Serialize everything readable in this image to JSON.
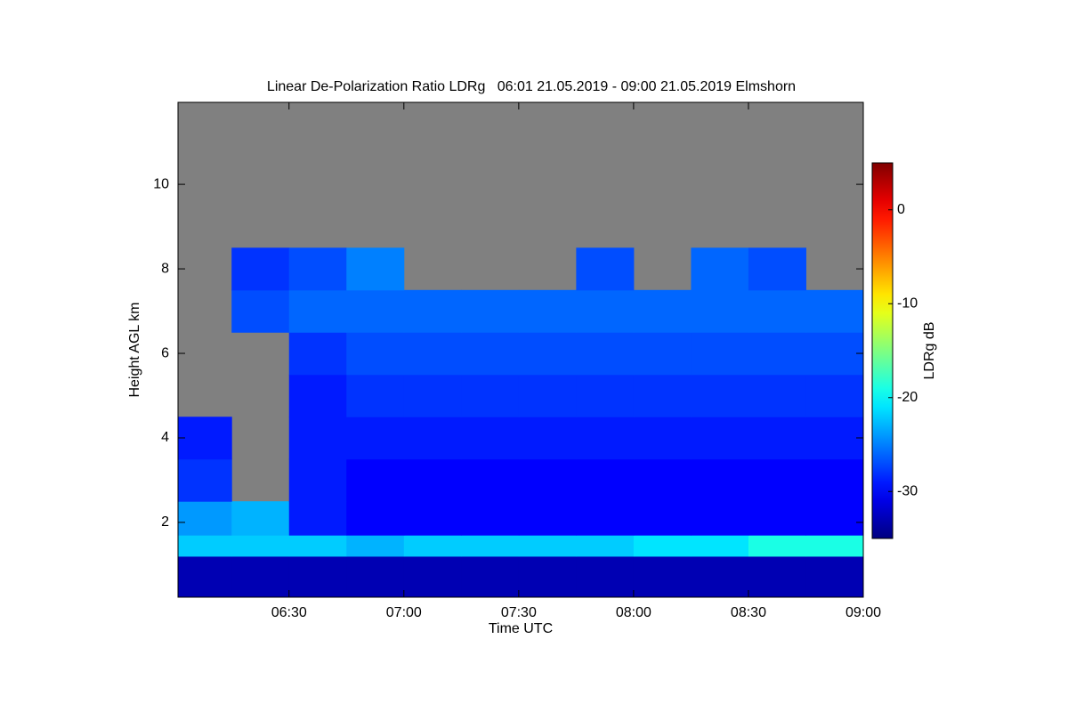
{
  "chart_data": {
    "type": "heatmap",
    "title": "Linear De-Polarization Ratio LDRg   06:01 21.05.2019 - 09:00 21.05.2019 Elmshorn",
    "x_label": "Time UTC",
    "y_label": "Height AGL km",
    "colorbar_label": "LDRg dB",
    "colormap": "jet",
    "nan_color": "#808080",
    "xlim": [
      6.0167,
      9.0
    ],
    "xticks": [
      {
        "value": 6.5,
        "label": "06:30"
      },
      {
        "value": 7.0,
        "label": "07:00"
      },
      {
        "value": 7.5,
        "label": "07:30"
      },
      {
        "value": 8.0,
        "label": "08:00"
      },
      {
        "value": 8.5,
        "label": "08:30"
      },
      {
        "value": 9.0,
        "label": "09:00"
      }
    ],
    "ylim": [
      0.23,
      11.94
    ],
    "yticks": [
      2,
      4,
      6,
      8,
      10
    ],
    "clim": [
      -35,
      5
    ],
    "cticks": [
      -30,
      -20,
      -10,
      0
    ],
    "xbins": [
      6.0167,
      6.25,
      6.5,
      6.75,
      7.0,
      7.25,
      7.5,
      7.75,
      8.0,
      8.25,
      8.5,
      8.75,
      9.0
    ],
    "ybins": [
      0.23,
      1.2,
      1.7,
      2.5,
      3.5,
      4.5,
      5.5,
      6.5,
      7.5,
      8.5,
      11.94
    ],
    "z": [
      [
        -33,
        -33,
        -33,
        -33,
        -33,
        -33,
        -33,
        -33,
        -33,
        -33,
        -33,
        -33
      ],
      [
        -22,
        -22,
        -22,
        -23,
        -22,
        -22,
        -22,
        -22,
        -21,
        -21,
        -19,
        -19
      ],
      [
        -24,
        -23,
        -29,
        -30,
        -30,
        -30,
        -30,
        -30,
        -30,
        -30,
        -30,
        -30
      ],
      [
        -28,
        null,
        -29,
        -30,
        -30,
        -30,
        -30,
        -30,
        -30,
        -30,
        -30,
        -30
      ],
      [
        -29,
        null,
        -29,
        -29,
        -29,
        -29,
        -29,
        -29,
        -29,
        -29,
        -29,
        -29
      ],
      [
        null,
        null,
        -29,
        -28,
        -28,
        -28,
        -28,
        -28,
        -28,
        -28,
        -28,
        -28
      ],
      [
        null,
        null,
        -28,
        -27,
        -27,
        -27,
        -27,
        -27,
        -27,
        -27,
        -27,
        -27
      ],
      [
        null,
        -27,
        -26,
        -26,
        -26,
        -26,
        -26,
        -26,
        -26,
        -26,
        -26,
        -26
      ],
      [
        null,
        -28,
        -27,
        -25,
        null,
        null,
        null,
        -27,
        null,
        -26,
        -27,
        null
      ],
      [
        null,
        null,
        null,
        null,
        null,
        null,
        null,
        null,
        null,
        null,
        null,
        null
      ]
    ]
  }
}
